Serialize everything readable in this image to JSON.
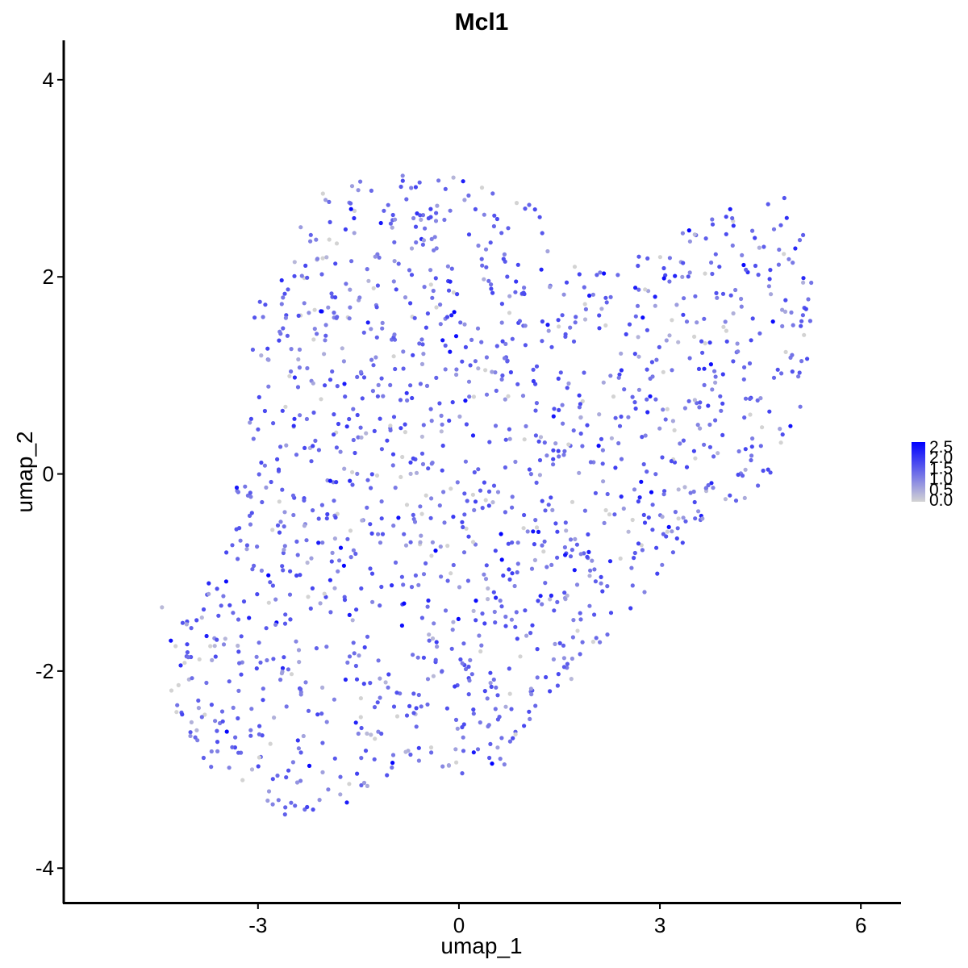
{
  "chart_data": {
    "type": "scatter",
    "title": "Mcl1",
    "xlabel": "umap_1",
    "ylabel": "umap_2",
    "xlim": [
      -5.9,
      6.6
    ],
    "ylim": [
      -4.35,
      4.4
    ],
    "xticks": [
      "-3",
      "0",
      "3",
      "6"
    ],
    "yticks": [
      "4",
      "2",
      "0",
      "-2",
      "-4"
    ],
    "grid": false,
    "legend": {
      "position": "right",
      "labels": [
        "2.5",
        "2.0",
        "1.5",
        "1.0",
        "0.5",
        "0.0"
      ],
      "range": [
        0.0,
        2.5
      ],
      "low_color": "#d3d3d3",
      "high_color": "#0000ff"
    },
    "outline": [
      [
        -4.6,
        -1.3
      ],
      [
        -4.1,
        -1.35
      ],
      [
        -3.9,
        -1.4
      ],
      [
        -3.55,
        -0.7
      ],
      [
        -3.3,
        -0.05
      ],
      [
        -3.1,
        0.6
      ],
      [
        -3.1,
        1.4
      ],
      [
        -2.95,
        2.0
      ],
      [
        -2.6,
        2.3
      ],
      [
        -2.25,
        2.85
      ],
      [
        -1.6,
        3.0
      ],
      [
        -0.9,
        3.05
      ],
      [
        -0.3,
        3.05
      ],
      [
        0.3,
        3.0
      ],
      [
        1.1,
        2.75
      ],
      [
        1.5,
        2.3
      ],
      [
        1.9,
        2.0
      ],
      [
        2.6,
        2.2
      ],
      [
        3.2,
        2.4
      ],
      [
        4.0,
        2.7
      ],
      [
        4.5,
        3.05
      ],
      [
        5.0,
        2.75
      ],
      [
        5.35,
        2.25
      ],
      [
        5.25,
        1.4
      ],
      [
        5.1,
        0.6
      ],
      [
        4.6,
        -0.1
      ],
      [
        3.6,
        -0.6
      ],
      [
        3.0,
        -1.05
      ],
      [
        2.4,
        -1.5
      ],
      [
        1.7,
        -2.1
      ],
      [
        1.0,
        -2.55
      ],
      [
        0.7,
        -2.95
      ],
      [
        0.0,
        -3.05
      ],
      [
        -0.8,
        -2.95
      ],
      [
        -1.3,
        -3.2
      ],
      [
        -2.0,
        -3.45
      ],
      [
        -2.5,
        -3.5
      ],
      [
        -3.2,
        -3.2
      ],
      [
        -3.9,
        -2.9
      ],
      [
        -4.3,
        -2.3
      ],
      [
        -4.3,
        -1.7
      ]
    ],
    "n_points": 1500,
    "seed": 20240517
  }
}
